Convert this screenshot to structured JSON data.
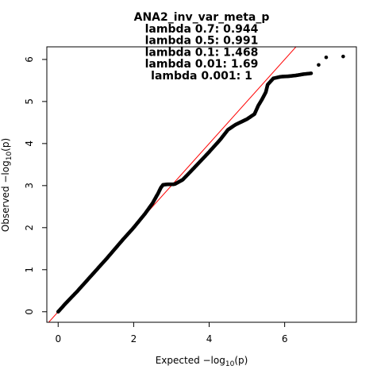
{
  "chart_data": {
    "type": "scatter",
    "title_lines": [
      "ANA2_inv_var_meta_p",
      "lambda 0.7: 0.944",
      "lambda 0.5: 0.991",
      "lambda 0.1: 1.468",
      "lambda 0.01: 1.69",
      "lambda 0.001: 1"
    ],
    "xlabel": {
      "prefix": "Expected  −log",
      "sub": "10",
      "suffix": "(p)"
    },
    "ylabel": {
      "prefix": "Observed  −log",
      "sub": "10",
      "suffix": "(p)"
    },
    "xlim": [
      -0.3,
      7.9
    ],
    "ylim": [
      -0.25,
      6.3
    ],
    "xticks": [
      0,
      2,
      4,
      6
    ],
    "yticks": [
      0,
      1,
      2,
      3,
      4,
      5,
      6
    ],
    "reference_line": {
      "slope": 1,
      "intercept": 0,
      "color": "#ff0000"
    },
    "point_color": "#000000",
    "curve": [
      [
        0.0,
        0.0
      ],
      [
        0.2,
        0.2
      ],
      [
        0.5,
        0.48
      ],
      [
        0.9,
        0.88
      ],
      [
        1.3,
        1.28
      ],
      [
        1.7,
        1.7
      ],
      [
        2.0,
        2.0
      ],
      [
        2.3,
        2.33
      ],
      [
        2.5,
        2.58
      ],
      [
        2.65,
        2.82
      ],
      [
        2.72,
        2.95
      ],
      [
        2.78,
        3.02
      ],
      [
        2.9,
        3.03
      ],
      [
        3.05,
        3.03
      ],
      [
        3.1,
        3.04
      ],
      [
        3.3,
        3.14
      ],
      [
        3.6,
        3.42
      ],
      [
        4.0,
        3.8
      ],
      [
        4.3,
        4.1
      ],
      [
        4.5,
        4.33
      ],
      [
        4.7,
        4.45
      ],
      [
        5.0,
        4.58
      ],
      [
        5.2,
        4.7
      ],
      [
        5.3,
        4.9
      ],
      [
        5.4,
        5.05
      ],
      [
        5.5,
        5.22
      ],
      [
        5.55,
        5.4
      ],
      [
        5.7,
        5.55
      ],
      [
        5.9,
        5.59
      ],
      [
        6.1,
        5.6
      ],
      [
        6.3,
        5.62
      ],
      [
        6.5,
        5.65
      ],
      [
        6.7,
        5.67
      ]
    ],
    "outliers": [
      [
        6.9,
        5.87
      ],
      [
        7.1,
        6.05
      ],
      [
        7.55,
        6.07
      ]
    ]
  }
}
